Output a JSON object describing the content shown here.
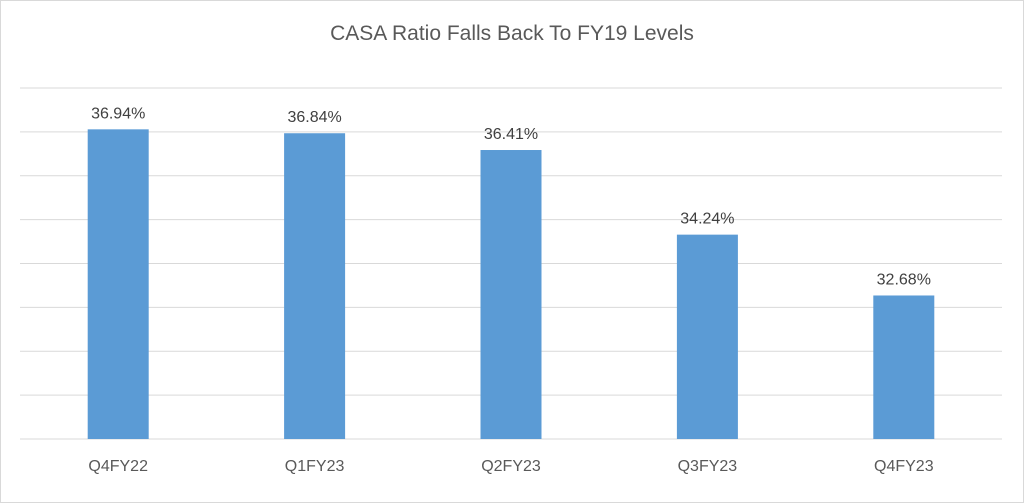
{
  "chart_data": {
    "type": "bar",
    "title": "CASA Ratio Falls Back To FY19 Levels",
    "categories": [
      "Q4FY22",
      "Q1FY23",
      "Q2FY23",
      "Q3FY23",
      "Q4FY23"
    ],
    "values": [
      36.94,
      36.84,
      36.41,
      34.24,
      32.68
    ],
    "data_labels": [
      "36.94%",
      "36.84%",
      "36.41%",
      "34.24%",
      "32.68%"
    ],
    "xlabel": "",
    "ylabel": "",
    "ylim": [
      29.0,
      38.0
    ],
    "grid": true,
    "legend": "none",
    "bar_color": "#5b9bd5",
    "gridline_color": "#d9d9d9"
  }
}
